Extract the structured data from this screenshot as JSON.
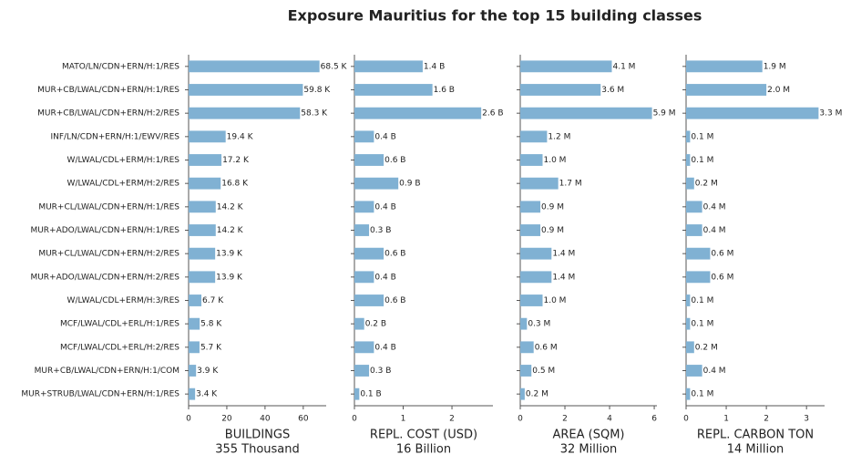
{
  "chart_data": {
    "type": "bar",
    "orientation": "horizontal",
    "title": "Exposure Mauritius for the top 15 building classes",
    "color": "#80b1d3",
    "categories": [
      "MATO/LN/CDN+ERN/H:1/RES",
      "MUR+CB/LWAL/CDN+ERN/H:1/RES",
      "MUR+CB/LWAL/CDN+ERN/H:2/RES",
      "INF/LN/CDN+ERN/H:1/EWV/RES",
      "W/LWAL/CDL+ERM/H:1/RES",
      "W/LWAL/CDL+ERM/H:2/RES",
      "MUR+CL/LWAL/CDN+ERN/H:1/RES",
      "MUR+ADO/LWAL/CDN+ERN/H:1/RES",
      "MUR+CL/LWAL/CDN+ERN/H:2/RES",
      "MUR+ADO/LWAL/CDN+ERN/H:2/RES",
      "W/LWAL/CDL+ERM/H:3/RES",
      "MCF/LWAL/CDL+ERL/H:1/RES",
      "MCF/LWAL/CDL+ERL/H:2/RES",
      "MUR+CB/LWAL/CDN+ERN/H:1/COM",
      "MUR+STRUB/LWAL/CDN+ERN/H:1/RES"
    ],
    "panels": [
      {
        "xlabel": "BUILDINGS",
        "total": "355 Thousand",
        "values": [
          68.5,
          59.8,
          58.3,
          19.4,
          17.2,
          16.8,
          14.2,
          14.2,
          13.9,
          13.9,
          6.7,
          5.8,
          5.7,
          3.9,
          3.4
        ],
        "value_labels": [
          "68.5 K",
          "59.8 K",
          "58.3 K",
          "19.4 K",
          "17.2 K",
          "16.8 K",
          "14.2 K",
          "14.2 K",
          "13.9 K",
          "13.9 K",
          "6.7 K",
          "5.8 K",
          "5.7 K",
          "3.9 K",
          "3.4 K"
        ],
        "xlim": [
          0,
          72
        ],
        "xticks": [
          0,
          20,
          40,
          60
        ]
      },
      {
        "xlabel": "REPL. COST (USD)",
        "total": "16 Billion",
        "values": [
          1.4,
          1.6,
          2.6,
          0.4,
          0.6,
          0.9,
          0.4,
          0.3,
          0.6,
          0.4,
          0.6,
          0.2,
          0.4,
          0.3,
          0.1
        ],
        "value_labels": [
          "1.4 B",
          "1.6 B",
          "2.6 B",
          "0.4 B",
          "0.6 B",
          "0.9 B",
          "0.4 B",
          "0.3 B",
          "0.6 B",
          "0.4 B",
          "0.6 B",
          "0.2 B",
          "0.4 B",
          "0.3 B",
          "0.1 B"
        ],
        "xlim": [
          0,
          2.84
        ],
        "xticks": [
          0,
          1,
          2
        ]
      },
      {
        "xlabel": "AREA (SQM)",
        "total": "32 Million",
        "values": [
          4.1,
          3.6,
          5.9,
          1.2,
          1.0,
          1.7,
          0.9,
          0.9,
          1.4,
          1.4,
          1.0,
          0.3,
          0.6,
          0.5,
          0.2
        ],
        "value_labels": [
          "4.1 M",
          "3.6 M",
          "5.9 M",
          "1.2 M",
          "1.0 M",
          "1.7 M",
          "0.9 M",
          "0.9 M",
          "1.4 M",
          "1.4 M",
          "1.0 M",
          "0.3 M",
          "0.6 M",
          "0.5 M",
          "0.2 M"
        ],
        "xlim": [
          0,
          6.12
        ],
        "xticks": [
          0,
          2,
          4,
          6
        ]
      },
      {
        "xlabel": "REPL. CARBON TON",
        "total": "14 Million",
        "values": [
          1.9,
          2.0,
          3.3,
          0.1,
          0.1,
          0.2,
          0.4,
          0.4,
          0.6,
          0.6,
          0.1,
          0.1,
          0.2,
          0.4,
          0.1
        ],
        "value_labels": [
          "1.9 M",
          "2.0 M",
          "3.3 M",
          "0.1 M",
          "0.1 M",
          "0.2 M",
          "0.4 M",
          "0.4 M",
          "0.6 M",
          "0.6 M",
          "0.1 M",
          "0.1 M",
          "0.2 M",
          "0.4 M",
          "0.1 M"
        ],
        "xlim": [
          0,
          3.45
        ],
        "xticks": [
          0,
          1,
          2,
          3
        ]
      }
    ]
  }
}
